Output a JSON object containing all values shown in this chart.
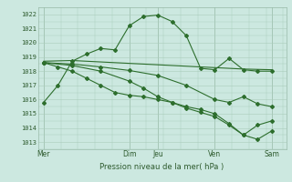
{
  "background_color": "#cce8e0",
  "plot_bg_color": "#cce8e0",
  "grid_color": "#aaccbb",
  "line_color": "#2d6e2d",
  "marker_color": "#2d6e2d",
  "xlabel": "Pression niveau de la mer( hPa )",
  "ylim": [
    1012.5,
    1022.5
  ],
  "yticks": [
    1013,
    1014,
    1015,
    1016,
    1017,
    1018,
    1019,
    1020,
    1021,
    1022
  ],
  "xtick_labels": [
    "Mer",
    "Dim",
    "Jeu",
    "Ven",
    "Sam"
  ],
  "xtick_positions": [
    0,
    3,
    4,
    6,
    8
  ],
  "vline_positions": [
    0,
    3,
    4,
    6,
    8
  ],
  "series1": {
    "x": [
      0,
      0.5,
      1,
      1.5,
      2,
      2.5,
      3,
      3.5,
      4,
      4.5,
      5,
      5.5,
      6,
      6.5,
      7,
      7.5,
      8
    ],
    "y": [
      1015.8,
      1017.0,
      1018.7,
      1019.2,
      1019.6,
      1019.5,
      1021.2,
      1021.85,
      1021.95,
      1021.5,
      1020.5,
      1018.2,
      1018.1,
      1018.9,
      1018.1,
      1018.0,
      1018.0
    ]
  },
  "series2": {
    "x": [
      0,
      1,
      2,
      3,
      4,
      5,
      6,
      7,
      8
    ],
    "y": [
      1018.7,
      1018.75,
      1018.65,
      1018.55,
      1018.45,
      1018.35,
      1018.25,
      1018.15,
      1018.1
    ]
  },
  "series3": {
    "x": [
      0,
      1,
      2,
      3,
      4,
      5,
      6,
      6.5,
      7,
      7.5,
      8
    ],
    "y": [
      1018.6,
      1018.5,
      1018.3,
      1018.05,
      1017.7,
      1017.0,
      1016.0,
      1015.8,
      1016.2,
      1015.7,
      1015.5
    ]
  },
  "series4": {
    "x": [
      0,
      0.5,
      1,
      1.5,
      2,
      2.5,
      3,
      3.5,
      4,
      4.5,
      5,
      5.5,
      6,
      6.5,
      7,
      7.5,
      8
    ],
    "y": [
      1018.6,
      1018.3,
      1018.0,
      1017.5,
      1017.0,
      1016.5,
      1016.3,
      1016.2,
      1016.0,
      1015.8,
      1015.5,
      1015.3,
      1015.0,
      1014.3,
      1013.5,
      1014.2,
      1014.5
    ]
  },
  "series5": {
    "x": [
      0,
      1,
      2,
      3,
      3.5,
      4,
      4.5,
      5,
      5.5,
      6,
      6.5,
      7,
      7.5,
      8
    ],
    "y": [
      1018.6,
      1018.4,
      1018.0,
      1017.3,
      1016.8,
      1016.2,
      1015.8,
      1015.4,
      1015.1,
      1014.8,
      1014.2,
      1013.5,
      1013.2,
      1013.8
    ]
  }
}
